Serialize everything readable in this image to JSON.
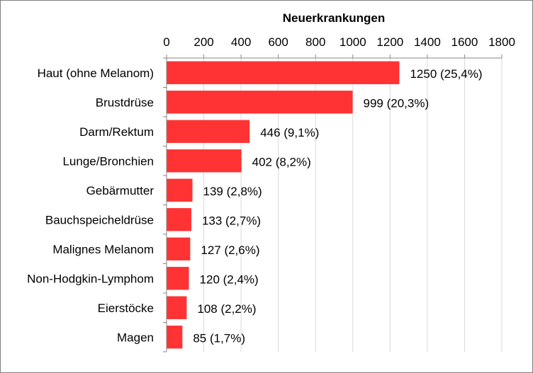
{
  "chart_data": {
    "type": "bar",
    "orientation": "horizontal",
    "title": "Neuerkrankungen",
    "xlim": [
      0,
      1800
    ],
    "x_ticks": [
      0,
      200,
      400,
      600,
      800,
      1000,
      1200,
      1400,
      1600,
      1800
    ],
    "axis_position": "top",
    "grid": true,
    "bar_color": "#ff3333",
    "categories": [
      "Haut (ohne Melanom)",
      "Brustdrüse",
      "Darm/Rektum",
      "Lunge/Bronchien",
      "Gebärmutter",
      "Bauchspeicheldrüse",
      "Malignes Melanom",
      "Non-Hodgkin-Lymphom",
      "Eierstöcke",
      "Magen"
    ],
    "values": [
      1250,
      999,
      446,
      402,
      139,
      133,
      127,
      120,
      108,
      85
    ],
    "data_labels": [
      "1250 (25,4%)",
      "999 (20,3%)",
      "446 (9,1%)",
      "402 (8,2%)",
      "139 (2,8%)",
      "133 (2,7%)",
      "127 (2,6%)",
      "120 (2,4%)",
      "108 (2,2%)",
      "85 (1,7%)"
    ]
  }
}
